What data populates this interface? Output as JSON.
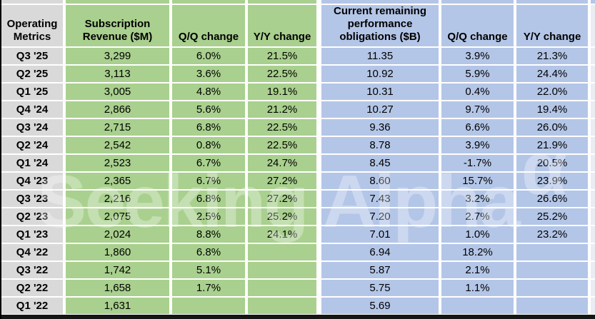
{
  "chart_data": {
    "type": "table",
    "columns": [
      "Operating Metrics",
      "Subscription Revenue ($M)",
      "Q/Q change",
      "Y/Y change",
      "Current remaining performance obligations ($B)",
      "Q/Q change",
      "Y/Y change"
    ],
    "rows": [
      [
        "Q3 '25",
        "3,299",
        "6.0%",
        "21.5%",
        "11.35",
        "3.9%",
        "21.3%"
      ],
      [
        "Q2 '25",
        "3,113",
        "3.6%",
        "22.5%",
        "10.92",
        "5.9%",
        "24.4%"
      ],
      [
        "Q1 '25",
        "3,005",
        "4.8%",
        "19.1%",
        "10.31",
        "0.4%",
        "22.0%"
      ],
      [
        "Q4 '24",
        "2,866",
        "5.6%",
        "21.2%",
        "10.27",
        "9.7%",
        "19.4%"
      ],
      [
        "Q3 '24",
        "2,715",
        "6.8%",
        "22.5%",
        "9.36",
        "6.6%",
        "26.0%"
      ],
      [
        "Q2 '24",
        "2,542",
        "0.8%",
        "22.5%",
        "8.78",
        "3.9%",
        "21.9%"
      ],
      [
        "Q1 '24",
        "2,523",
        "6.7%",
        "24.7%",
        "8.45",
        "-1.7%",
        "20.5%"
      ],
      [
        "Q4 '23",
        "2,365",
        "6.7%",
        "27.2%",
        "8.60",
        "15.7%",
        "23.9%"
      ],
      [
        "Q3 '23",
        "2,216",
        "6.8%",
        "27.2%",
        "7.43",
        "3.2%",
        "26.6%"
      ],
      [
        "Q2 '23",
        "2,075",
        "2.5%",
        "25.2%",
        "7.20",
        "2.7%",
        "25.2%"
      ],
      [
        "Q1 '23",
        "2,024",
        "8.8%",
        "24.1%",
        "7.01",
        "1.0%",
        "23.2%"
      ],
      [
        "Q4 '22",
        "1,860",
        "6.8%",
        "",
        "6.94",
        "18.2%",
        ""
      ],
      [
        "Q3 '22",
        "1,742",
        "5.1%",
        "",
        "5.87",
        "2.1%",
        ""
      ],
      [
        "Q2 '22",
        "1,658",
        "1.7%",
        "",
        "5.75",
        "1.1%",
        ""
      ],
      [
        "Q1 '22",
        "1,631",
        "",
        "",
        "5.69",
        "",
        ""
      ]
    ]
  },
  "watermark": {
    "text": "Seeking Alpha",
    "symbol": "α"
  },
  "colors": {
    "label_gray": "#d9d9d9",
    "revenue_green": "#a9d08e",
    "obligations_blue": "#b4c6e7",
    "gridline_white": "#ffffff",
    "text_black": "#000000"
  }
}
